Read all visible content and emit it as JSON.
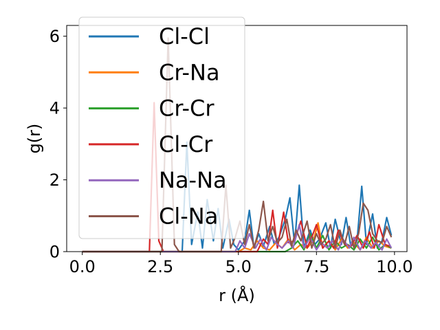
{
  "chart_data": {
    "type": "line",
    "xlabel": "r (Å)",
    "ylabel": "g(r)",
    "xlim": [
      -0.5,
      10.4
    ],
    "ylim": [
      0,
      6.3
    ],
    "xticks": [
      0.0,
      2.5,
      5.0,
      7.5,
      10.0
    ],
    "xtick_labels": [
      "0.0",
      "2.5",
      "5.0",
      "7.5",
      "10.0"
    ],
    "yticks": [
      0,
      2,
      4,
      6
    ],
    "ytick_labels": [
      "0",
      "2",
      "4",
      "6"
    ],
    "legend_position": "top-left",
    "grid": false,
    "series": [
      {
        "name": "Cl-Cl",
        "color": "#1f77b4",
        "x": [
          0,
          3.2,
          3.35,
          3.5,
          3.7,
          3.85,
          4.0,
          4.2,
          4.35,
          4.5,
          4.7,
          4.85,
          5.0,
          5.2,
          5.35,
          5.5,
          5.65,
          5.8,
          6.0,
          6.15,
          6.3,
          6.5,
          6.65,
          6.8,
          6.95,
          7.1,
          7.3,
          7.45,
          7.6,
          7.8,
          7.95,
          8.1,
          8.3,
          8.45,
          8.6,
          8.8,
          8.95,
          9.1,
          9.3,
          9.45,
          9.6,
          9.75,
          9.9
        ],
        "y": [
          0,
          0,
          3.05,
          0.2,
          1.1,
          0.1,
          1.45,
          0.3,
          1.2,
          0.1,
          0.9,
          0.2,
          0.05,
          0.3,
          1.15,
          0.1,
          0.5,
          0.15,
          0.7,
          0.2,
          0.4,
          0.9,
          1.5,
          0.2,
          1.85,
          0.1,
          0.6,
          0.2,
          0.35,
          0.8,
          0.1,
          0.9,
          0.2,
          0.95,
          0.15,
          0.3,
          1.82,
          0.2,
          1.05,
          0.1,
          0.3,
          0.95,
          0.45
        ]
      },
      {
        "name": "Cr-Na",
        "color": "#ff7f0e",
        "x": [
          0,
          5.0,
          5.2,
          5.4,
          5.6,
          5.8,
          6.0,
          6.2,
          6.4,
          6.6,
          6.8,
          7.0,
          7.2,
          7.4,
          7.55,
          7.7,
          7.9,
          8.1,
          8.3,
          8.5,
          8.7,
          8.9,
          9.1,
          9.3,
          9.5,
          9.7,
          9.9
        ],
        "y": [
          0,
          0,
          0.1,
          0.05,
          0.3,
          0.1,
          0.05,
          0.25,
          0.1,
          0.35,
          0.05,
          0.2,
          0.1,
          0.3,
          0.8,
          0.1,
          0.3,
          0.05,
          0.35,
          0.1,
          0.25,
          0.05,
          0.4,
          0.1,
          0.3,
          0.15,
          0.1
        ]
      },
      {
        "name": "Cr-Cr",
        "color": "#2ca02c",
        "x": [
          0,
          6.5,
          6.7,
          6.9,
          7.1,
          7.3,
          7.5,
          7.7,
          7.9,
          8.1,
          8.3,
          8.5,
          8.7,
          8.9,
          9.1,
          9.3,
          9.5,
          9.7,
          9.9
        ],
        "y": [
          0,
          0,
          0.1,
          0.3,
          0.05,
          0.5,
          0.1,
          0.45,
          0.05,
          0.3,
          0.1,
          0.2,
          0.05,
          0.35,
          0.1,
          0.4,
          0.05,
          0.2,
          0.1
        ]
      },
      {
        "name": "Cl-Cr",
        "color": "#d62728",
        "x": [
          0,
          2.15,
          2.3,
          2.45,
          2.6,
          5.6,
          5.8,
          5.95,
          6.1,
          6.25,
          6.45,
          6.6,
          6.8,
          7.0,
          7.2,
          7.35,
          7.5,
          7.7,
          7.9,
          8.05,
          8.2,
          8.4,
          8.6,
          8.8,
          9.0,
          9.2,
          9.35,
          9.5,
          9.7,
          9.85
        ],
        "y": [
          0,
          0,
          4.15,
          0.3,
          0,
          0,
          0.35,
          0.2,
          1.15,
          0.1,
          1.1,
          0.25,
          0.3,
          0.85,
          0.1,
          0.4,
          0.75,
          0.1,
          0.3,
          0.1,
          0.6,
          0.2,
          0.15,
          0.45,
          0.1,
          0.55,
          0.1,
          0.75,
          0.2,
          0.15
        ]
      },
      {
        "name": "Na-Na",
        "color": "#9467bd",
        "x": [
          0,
          4.9,
          5.05,
          5.2,
          5.35,
          5.55,
          5.7,
          5.9,
          6.05,
          6.25,
          6.4,
          6.6,
          6.75,
          6.95,
          7.1,
          7.3,
          7.5,
          7.65,
          7.85,
          8.0,
          8.2,
          8.35,
          8.55,
          8.7,
          8.9,
          9.05,
          9.25,
          9.4,
          9.6,
          9.75,
          9.9
        ],
        "y": [
          0,
          0,
          0.3,
          0.1,
          0.5,
          0.1,
          0.35,
          0.05,
          0.4,
          0.2,
          0.1,
          0.3,
          0.1,
          0.75,
          0.1,
          0.4,
          0.05,
          0.25,
          0.1,
          0.3,
          0.05,
          0.35,
          0.1,
          0.4,
          0.05,
          0.3,
          0.1,
          0.25,
          0.05,
          0.35,
          0.1
        ]
      },
      {
        "name": "Cl-Na",
        "color": "#8c564b",
        "x": [
          0,
          2.55,
          2.75,
          2.95,
          3.1,
          4.45,
          4.6,
          4.75,
          4.9,
          5.05,
          5.2,
          5.35,
          5.5,
          5.65,
          5.8,
          5.95,
          6.1,
          6.25,
          6.4,
          6.55,
          6.7,
          6.85,
          7.0,
          7.2,
          7.35,
          7.5,
          7.65,
          7.8,
          7.95,
          8.1,
          8.25,
          8.4,
          8.55,
          8.7,
          8.85,
          9.0,
          9.15,
          9.3,
          9.45,
          9.6,
          9.75,
          9.9
        ],
        "y": [
          0,
          0,
          5.95,
          0.2,
          0,
          0,
          1.85,
          0.1,
          0.4,
          0.85,
          0.2,
          0.75,
          0.1,
          0.6,
          1.4,
          0.3,
          0.7,
          0.25,
          0.4,
          0.9,
          0.15,
          0.6,
          0.3,
          0.85,
          0.1,
          0.5,
          0.2,
          0.35,
          0.75,
          0.1,
          0.6,
          0.2,
          0.7,
          0.1,
          0.5,
          1.35,
          1.15,
          0.5,
          0.3,
          0.25,
          0.7,
          0.4
        ]
      }
    ]
  }
}
